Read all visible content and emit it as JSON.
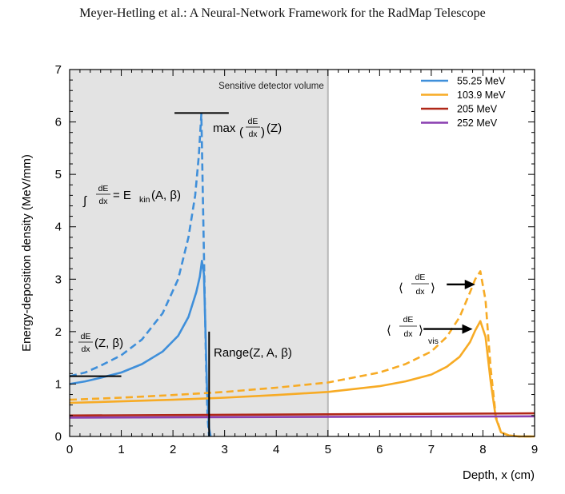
{
  "header": {
    "text": "Meyer-Hetling et al.: A Neural-Network Framework for the RadMap Telescope"
  },
  "chart_data": {
    "type": "line",
    "title": "",
    "xlabel": "Depth, x (cm)",
    "ylabel": "Energy-deposition density (MeV/mm)",
    "xlim": [
      0,
      9
    ],
    "ylim": [
      0,
      7
    ],
    "xticks": [
      "0",
      "1",
      "2",
      "3",
      "4",
      "5",
      "6",
      "7",
      "8",
      "9"
    ],
    "yticks": [
      "0",
      "1",
      "2",
      "3",
      "4",
      "5",
      "6",
      "7"
    ],
    "grid": false,
    "legend_position": "top-right",
    "shaded_region": {
      "x_from": 0,
      "x_to": 5,
      "label": "Sensitive detector volume",
      "color": "#e3e3e3",
      "edge_color": "#b8b8b8"
    },
    "series": [
      {
        "name": "55.25 MeV",
        "color": "#3f8fda",
        "solid_x": [
          0,
          0.3,
          0.6,
          1.0,
          1.4,
          1.8,
          2.1,
          2.3,
          2.45,
          2.52,
          2.56,
          2.6,
          2.63,
          2.66,
          2.7,
          2.73
        ],
        "solid_y": [
          1.0,
          1.05,
          1.12,
          1.22,
          1.38,
          1.62,
          1.92,
          2.28,
          2.75,
          3.05,
          3.35,
          3.1,
          2.0,
          0.9,
          0.15,
          0.0
        ],
        "dashed_x": [
          0,
          0.3,
          0.6,
          1.0,
          1.4,
          1.8,
          2.1,
          2.3,
          2.43,
          2.5,
          2.55,
          2.6,
          2.64,
          2.67,
          2.7
        ],
        "dashed_y": [
          1.15,
          1.22,
          1.35,
          1.55,
          1.85,
          2.35,
          3.0,
          3.8,
          4.6,
          5.35,
          6.15,
          3.5,
          1.4,
          0.35,
          0.0
        ]
      },
      {
        "name": "103.9 MeV",
        "color": "#f7ab25",
        "solid_x": [
          0,
          1,
          2,
          3,
          4,
          5,
          6,
          6.5,
          7,
          7.3,
          7.55,
          7.75,
          7.85,
          7.95,
          8.05,
          8.15,
          8.25,
          8.35,
          8.5,
          8.7,
          9.0
        ],
        "solid_y": [
          0.64,
          0.67,
          0.7,
          0.74,
          0.79,
          0.85,
          0.96,
          1.05,
          1.18,
          1.33,
          1.52,
          1.8,
          2.02,
          2.2,
          1.9,
          1.05,
          0.35,
          0.08,
          0.02,
          0.0,
          0.0
        ],
        "dashed_x": [
          0,
          1,
          2,
          3,
          4,
          5,
          6,
          6.5,
          7,
          7.3,
          7.55,
          7.75,
          7.85,
          7.95,
          8.05,
          8.15,
          8.25,
          8.35,
          8.5,
          8.7,
          9.0
        ],
        "dashed_y": [
          0.7,
          0.74,
          0.79,
          0.85,
          0.93,
          1.03,
          1.22,
          1.38,
          1.62,
          1.9,
          2.28,
          2.75,
          3.0,
          3.15,
          2.6,
          1.3,
          0.38,
          0.08,
          0.02,
          0.0,
          0.0
        ]
      },
      {
        "name": "205 MeV",
        "color": "#b02818",
        "solid_x": [
          0,
          9
        ],
        "solid_y": [
          0.4,
          0.44
        ]
      },
      {
        "name": "252 MeV",
        "color": "#8a3fb0",
        "solid_x": [
          0,
          9
        ],
        "solid_y": [
          0.36,
          0.385
        ]
      }
    ],
    "annotations": {
      "peak_label": {
        "fn": "max",
        "frac_num": "dE",
        "frac_den": "dx",
        "arg": "(Z)"
      },
      "integral_label": {
        "frac_num": "dE",
        "frac_den": "dx",
        "rhs": "= E",
        "sub": "kin",
        "args": "(A, β)"
      },
      "initial_label": {
        "frac_num": "dE",
        "frac_den": "dx",
        "args": "(Z, β)"
      },
      "range_label": {
        "text": "Range(Z, A, β)"
      },
      "mean_label": {
        "frac_num": "dE",
        "frac_den": "dx"
      },
      "vis_label": {
        "frac_num": "dE",
        "frac_den": "dx",
        "sub": "vis"
      }
    }
  }
}
